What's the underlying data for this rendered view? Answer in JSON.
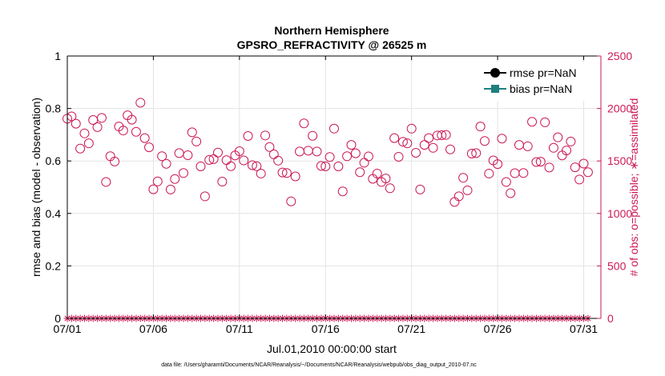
{
  "chart_data": {
    "type": "scatter",
    "title": "Northern Hemisphere",
    "subtitle": "GPSRO_REFRACTIVITY @ 26525 m",
    "xlabel": "Jul.01,2010 00:00:00 start",
    "ylabel": "rmse and bias (model - observation)",
    "ylabel_right": "# of obs: o=possible; ∗=assimilated",
    "footnote": "data file: /Users/gharamti/Documents/NCAR/Reanalysis/~/Documents/NCAR/Reanalysis/webpub/obs_diag_output_2010-07.nc",
    "xlim": [
      0,
      31
    ],
    "ylim": [
      0,
      1
    ],
    "ylim_right": [
      0,
      2500
    ],
    "x_ticks": [
      0,
      5,
      10,
      15,
      20,
      25,
      30
    ],
    "x_tick_labels": [
      "07/01",
      "07/06",
      "07/11",
      "07/16",
      "07/21",
      "07/26",
      "07/31"
    ],
    "y_ticks": [
      0,
      0.2,
      0.4,
      0.6,
      0.8,
      1
    ],
    "y_tick_labels": [
      "0",
      "0.2",
      "0.4",
      "0.6",
      "0.8",
      "1"
    ],
    "y_right_ticks": [
      0,
      500,
      1000,
      1500,
      2000,
      2500
    ],
    "y_right_tick_labels": [
      "0",
      "500",
      "1000",
      "1500",
      "2000",
      "2500"
    ],
    "grid": true,
    "legend_position": "top-right",
    "colors": {
      "possible": "#cc1a56",
      "rmse": "#000000",
      "bias": "#1f7f7f",
      "grid": "#e3e3e3",
      "axis": "#000000"
    },
    "series": [
      {
        "name": "rmse pr=NaN",
        "marker": "filled-circle",
        "values": []
      },
      {
        "name": "bias pr=NaN",
        "marker": "filled-square",
        "values": []
      },
      {
        "marker": "open-circle",
        "axis": "right",
        "points": [
          [
            0.0,
            1903
          ],
          [
            0.25,
            1925
          ],
          [
            0.5,
            1855
          ],
          [
            0.75,
            1618
          ],
          [
            1.0,
            1763
          ],
          [
            1.25,
            1668
          ],
          [
            1.5,
            1890
          ],
          [
            1.75,
            1823
          ],
          [
            2.0,
            1910
          ],
          [
            2.25,
            1300
          ],
          [
            2.5,
            1545
          ],
          [
            2.75,
            1495
          ],
          [
            3.0,
            1828
          ],
          [
            3.25,
            1790
          ],
          [
            3.5,
            1935
          ],
          [
            3.75,
            1893
          ],
          [
            4.0,
            1778
          ],
          [
            4.25,
            2055
          ],
          [
            4.5,
            1718
          ],
          [
            4.75,
            1630
          ],
          [
            5.0,
            1230
          ],
          [
            5.25,
            1305
          ],
          [
            5.5,
            1545
          ],
          [
            5.75,
            1473
          ],
          [
            6.0,
            1228
          ],
          [
            6.25,
            1328
          ],
          [
            6.5,
            1575
          ],
          [
            6.75,
            1385
          ],
          [
            7.0,
            1555
          ],
          [
            7.25,
            1773
          ],
          [
            7.5,
            1685
          ],
          [
            7.75,
            1448
          ],
          [
            8.0,
            1163
          ],
          [
            8.25,
            1510
          ],
          [
            8.5,
            1518
          ],
          [
            8.75,
            1580
          ],
          [
            9.0,
            1303
          ],
          [
            9.25,
            1508
          ],
          [
            9.5,
            1450
          ],
          [
            9.75,
            1553
          ],
          [
            10.0,
            1593
          ],
          [
            10.25,
            1505
          ],
          [
            10.5,
            1738
          ],
          [
            10.75,
            1460
          ],
          [
            11.0,
            1450
          ],
          [
            11.25,
            1380
          ],
          [
            11.5,
            1743
          ],
          [
            11.75,
            1633
          ],
          [
            12.0,
            1563
          ],
          [
            12.25,
            1503
          ],
          [
            12.5,
            1390
          ],
          [
            12.75,
            1385
          ],
          [
            13.0,
            1115
          ],
          [
            13.25,
            1353
          ],
          [
            13.5,
            1590
          ],
          [
            13.75,
            1858
          ],
          [
            14.0,
            1598
          ],
          [
            14.25,
            1740
          ],
          [
            14.5,
            1590
          ],
          [
            14.75,
            1453
          ],
          [
            15.0,
            1448
          ],
          [
            15.25,
            1538
          ],
          [
            15.5,
            1808
          ],
          [
            15.75,
            1448
          ],
          [
            16.0,
            1210
          ],
          [
            16.25,
            1545
          ],
          [
            16.5,
            1653
          ],
          [
            16.75,
            1573
          ],
          [
            17.0,
            1393
          ],
          [
            17.25,
            1483
          ],
          [
            17.5,
            1543
          ],
          [
            17.75,
            1330
          ],
          [
            18.0,
            1380
          ],
          [
            18.25,
            1300
          ],
          [
            18.5,
            1333
          ],
          [
            18.75,
            1240
          ],
          [
            19.0,
            1718
          ],
          [
            19.25,
            1540
          ],
          [
            19.5,
            1683
          ],
          [
            19.75,
            1668
          ],
          [
            20.0,
            1808
          ],
          [
            20.25,
            1578
          ],
          [
            20.5,
            1228
          ],
          [
            20.75,
            1653
          ],
          [
            21.0,
            1718
          ],
          [
            21.25,
            1625
          ],
          [
            21.5,
            1743
          ],
          [
            21.75,
            1745
          ],
          [
            22.0,
            1748
          ],
          [
            22.25,
            1610
          ],
          [
            22.5,
            1110
          ],
          [
            22.75,
            1163
          ],
          [
            23.0,
            1340
          ],
          [
            23.25,
            1220
          ],
          [
            23.5,
            1570
          ],
          [
            23.75,
            1575
          ],
          [
            24.0,
            1828
          ],
          [
            24.25,
            1690
          ],
          [
            24.5,
            1380
          ],
          [
            24.75,
            1505
          ],
          [
            25.0,
            1470
          ],
          [
            25.25,
            1713
          ],
          [
            25.5,
            1300
          ],
          [
            25.75,
            1193
          ],
          [
            26.0,
            1383
          ],
          [
            26.25,
            1653
          ],
          [
            26.5,
            1385
          ],
          [
            26.75,
            1640
          ],
          [
            27.0,
            1873
          ],
          [
            27.25,
            1490
          ],
          [
            27.5,
            1493
          ],
          [
            27.75,
            1868
          ],
          [
            28.0,
            1438
          ],
          [
            28.25,
            1625
          ],
          [
            28.5,
            1725
          ],
          [
            28.75,
            1553
          ],
          [
            29.0,
            1600
          ],
          [
            29.25,
            1685
          ],
          [
            29.5,
            1440
          ],
          [
            29.75,
            1323
          ],
          [
            30.0,
            1475
          ],
          [
            30.25,
            1393
          ]
        ]
      },
      {
        "marker": "asterisk",
        "axis": "right",
        "points": [
          [
            0.0,
            0
          ],
          [
            0.25,
            0
          ],
          [
            0.5,
            0
          ],
          [
            0.75,
            0
          ],
          [
            1.0,
            0
          ],
          [
            1.25,
            0
          ],
          [
            1.5,
            0
          ],
          [
            1.75,
            0
          ],
          [
            2.0,
            0
          ],
          [
            2.25,
            0
          ],
          [
            2.5,
            0
          ],
          [
            2.75,
            0
          ],
          [
            3.0,
            0
          ],
          [
            3.25,
            0
          ],
          [
            3.5,
            0
          ],
          [
            3.75,
            0
          ],
          [
            4.0,
            0
          ],
          [
            4.25,
            0
          ],
          [
            4.5,
            0
          ],
          [
            4.75,
            0
          ],
          [
            5.0,
            0
          ],
          [
            5.25,
            0
          ],
          [
            5.5,
            0
          ],
          [
            5.75,
            0
          ],
          [
            6.0,
            0
          ],
          [
            6.25,
            0
          ],
          [
            6.5,
            0
          ],
          [
            6.75,
            0
          ],
          [
            7.0,
            0
          ],
          [
            7.25,
            0
          ],
          [
            7.5,
            0
          ],
          [
            7.75,
            0
          ],
          [
            8.0,
            0
          ],
          [
            8.25,
            0
          ],
          [
            8.5,
            0
          ],
          [
            8.75,
            0
          ],
          [
            9.0,
            0
          ],
          [
            9.25,
            0
          ],
          [
            9.5,
            0
          ],
          [
            9.75,
            0
          ],
          [
            10.0,
            0
          ],
          [
            10.25,
            0
          ],
          [
            10.5,
            0
          ],
          [
            10.75,
            0
          ],
          [
            11.0,
            0
          ],
          [
            11.25,
            0
          ],
          [
            11.5,
            0
          ],
          [
            11.75,
            0
          ],
          [
            12.0,
            0
          ],
          [
            12.25,
            0
          ],
          [
            12.5,
            0
          ],
          [
            12.75,
            0
          ],
          [
            13.0,
            0
          ],
          [
            13.25,
            0
          ],
          [
            13.5,
            0
          ],
          [
            13.75,
            0
          ],
          [
            14.0,
            0
          ],
          [
            14.25,
            0
          ],
          [
            14.5,
            0
          ],
          [
            14.75,
            0
          ],
          [
            15.0,
            0
          ],
          [
            15.25,
            0
          ],
          [
            15.5,
            0
          ],
          [
            15.75,
            0
          ],
          [
            16.0,
            0
          ],
          [
            16.25,
            0
          ],
          [
            16.5,
            0
          ],
          [
            16.75,
            0
          ],
          [
            17.0,
            0
          ],
          [
            17.25,
            0
          ],
          [
            17.5,
            0
          ],
          [
            17.75,
            0
          ],
          [
            18.0,
            0
          ],
          [
            18.25,
            0
          ],
          [
            18.5,
            0
          ],
          [
            18.75,
            0
          ],
          [
            19.0,
            0
          ],
          [
            19.25,
            0
          ],
          [
            19.5,
            0
          ],
          [
            19.75,
            0
          ],
          [
            20.0,
            0
          ],
          [
            20.25,
            0
          ],
          [
            20.5,
            0
          ],
          [
            20.75,
            0
          ],
          [
            21.0,
            0
          ],
          [
            21.25,
            0
          ],
          [
            21.5,
            0
          ],
          [
            21.75,
            0
          ],
          [
            22.0,
            0
          ],
          [
            22.25,
            0
          ],
          [
            22.5,
            0
          ],
          [
            22.75,
            0
          ],
          [
            23.0,
            0
          ],
          [
            23.25,
            0
          ],
          [
            23.5,
            0
          ],
          [
            23.75,
            0
          ],
          [
            24.0,
            0
          ],
          [
            24.25,
            0
          ],
          [
            24.5,
            0
          ],
          [
            24.75,
            0
          ],
          [
            25.0,
            0
          ],
          [
            25.25,
            0
          ],
          [
            25.5,
            0
          ],
          [
            25.75,
            0
          ],
          [
            26.0,
            0
          ],
          [
            26.25,
            0
          ],
          [
            26.5,
            0
          ],
          [
            26.75,
            0
          ],
          [
            27.0,
            0
          ],
          [
            27.25,
            0
          ],
          [
            27.5,
            0
          ],
          [
            27.75,
            0
          ],
          [
            28.0,
            0
          ],
          [
            28.25,
            0
          ],
          [
            28.5,
            0
          ],
          [
            28.75,
            0
          ],
          [
            29.0,
            0
          ],
          [
            29.25,
            0
          ],
          [
            29.5,
            0
          ],
          [
            29.75,
            0
          ],
          [
            30.0,
            0
          ],
          [
            30.25,
            0
          ]
        ]
      }
    ]
  }
}
